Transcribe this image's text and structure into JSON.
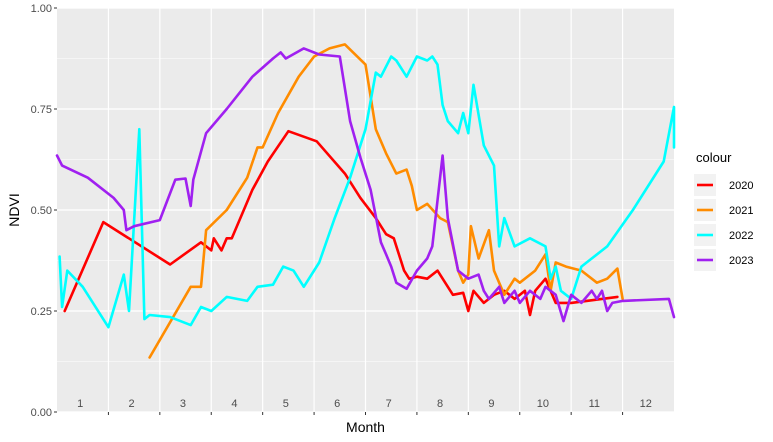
{
  "chart_data": {
    "type": "line",
    "title": "",
    "xlabel": "Month",
    "ylabel": "NDVI",
    "xlim": [
      0,
      12
    ],
    "ylim": [
      0,
      1
    ],
    "grid": true,
    "legend_title": "colour",
    "legend_position": "right",
    "x_tick_labels": [
      "1",
      "2",
      "3",
      "4",
      "5",
      "6",
      "7",
      "8",
      "9",
      "10",
      "11",
      "12"
    ],
    "y_tick_labels": [
      "0.00",
      "0.25",
      "0.50",
      "0.75",
      "1.00"
    ],
    "y_ticks": [
      0,
      0.25,
      0.5,
      0.75,
      1.0
    ],
    "series": [
      {
        "name": "2020",
        "color": "#ff0000",
        "points": [
          [
            0.15,
            0.25
          ],
          [
            0.9,
            0.47
          ],
          [
            2.2,
            0.365
          ],
          [
            2.8,
            0.42
          ],
          [
            3.0,
            0.4
          ],
          [
            3.05,
            0.43
          ],
          [
            3.2,
            0.4
          ],
          [
            3.3,
            0.43
          ],
          [
            3.4,
            0.43
          ],
          [
            3.8,
            0.55
          ],
          [
            4.1,
            0.62
          ],
          [
            4.5,
            0.695
          ],
          [
            5.05,
            0.67
          ],
          [
            5.6,
            0.59
          ],
          [
            5.9,
            0.53
          ],
          [
            6.2,
            0.48
          ],
          [
            6.4,
            0.44
          ],
          [
            6.55,
            0.43
          ],
          [
            6.75,
            0.35
          ],
          [
            6.85,
            0.33
          ],
          [
            7.0,
            0.335
          ],
          [
            7.2,
            0.33
          ],
          [
            7.4,
            0.35
          ],
          [
            7.7,
            0.29
          ],
          [
            7.9,
            0.295
          ],
          [
            8.0,
            0.25
          ],
          [
            8.1,
            0.3
          ],
          [
            8.3,
            0.27
          ],
          [
            8.5,
            0.29
          ],
          [
            8.7,
            0.3
          ],
          [
            8.9,
            0.28
          ],
          [
            9.1,
            0.3
          ],
          [
            9.2,
            0.24
          ],
          [
            9.3,
            0.3
          ],
          [
            9.5,
            0.33
          ],
          [
            9.7,
            0.27
          ],
          [
            10.0,
            0.27
          ],
          [
            10.9,
            0.285
          ]
        ]
      },
      {
        "name": "2021",
        "color": "#ff8c00",
        "points": [
          [
            1.8,
            0.135
          ],
          [
            2.6,
            0.31
          ],
          [
            2.8,
            0.31
          ],
          [
            2.9,
            0.45
          ],
          [
            3.3,
            0.5
          ],
          [
            3.7,
            0.58
          ],
          [
            3.9,
            0.655
          ],
          [
            4.0,
            0.655
          ],
          [
            4.3,
            0.74
          ],
          [
            4.7,
            0.83
          ],
          [
            5.0,
            0.88
          ],
          [
            5.3,
            0.9
          ],
          [
            5.6,
            0.91
          ],
          [
            6.0,
            0.86
          ],
          [
            6.2,
            0.7
          ],
          [
            6.4,
            0.64
          ],
          [
            6.6,
            0.59
          ],
          [
            6.8,
            0.6
          ],
          [
            6.9,
            0.56
          ],
          [
            7.0,
            0.5
          ],
          [
            7.2,
            0.515
          ],
          [
            7.45,
            0.48
          ],
          [
            7.6,
            0.47
          ],
          [
            7.8,
            0.35
          ],
          [
            7.9,
            0.32
          ],
          [
            8.0,
            0.34
          ],
          [
            8.05,
            0.46
          ],
          [
            8.2,
            0.38
          ],
          [
            8.4,
            0.45
          ],
          [
            8.5,
            0.35
          ],
          [
            8.7,
            0.29
          ],
          [
            8.9,
            0.33
          ],
          [
            9.0,
            0.32
          ],
          [
            9.3,
            0.35
          ],
          [
            9.5,
            0.39
          ],
          [
            9.6,
            0.3
          ],
          [
            9.7,
            0.37
          ],
          [
            9.9,
            0.36
          ],
          [
            10.2,
            0.35
          ],
          [
            10.5,
            0.32
          ],
          [
            10.7,
            0.33
          ],
          [
            10.9,
            0.355
          ],
          [
            11.0,
            0.28
          ]
        ]
      },
      {
        "name": "2022",
        "color": "#00ffff",
        "points": [
          [
            0.05,
            0.385
          ],
          [
            0.1,
            0.26
          ],
          [
            0.2,
            0.35
          ],
          [
            0.5,
            0.31
          ],
          [
            1.0,
            0.21
          ],
          [
            1.3,
            0.34
          ],
          [
            1.4,
            0.25
          ],
          [
            1.6,
            0.7
          ],
          [
            1.7,
            0.23
          ],
          [
            1.8,
            0.24
          ],
          [
            2.2,
            0.235
          ],
          [
            2.6,
            0.215
          ],
          [
            2.8,
            0.26
          ],
          [
            3.0,
            0.25
          ],
          [
            3.3,
            0.285
          ],
          [
            3.7,
            0.275
          ],
          [
            3.9,
            0.31
          ],
          [
            4.2,
            0.315
          ],
          [
            4.4,
            0.36
          ],
          [
            4.6,
            0.35
          ],
          [
            4.8,
            0.31
          ],
          [
            5.1,
            0.37
          ],
          [
            5.4,
            0.48
          ],
          [
            5.7,
            0.58
          ],
          [
            6.0,
            0.7
          ],
          [
            6.2,
            0.84
          ],
          [
            6.3,
            0.83
          ],
          [
            6.5,
            0.88
          ],
          [
            6.6,
            0.87
          ],
          [
            6.8,
            0.83
          ],
          [
            7.0,
            0.88
          ],
          [
            7.2,
            0.87
          ],
          [
            7.3,
            0.88
          ],
          [
            7.4,
            0.86
          ],
          [
            7.5,
            0.76
          ],
          [
            7.6,
            0.72
          ],
          [
            7.8,
            0.69
          ],
          [
            7.9,
            0.74
          ],
          [
            8.0,
            0.69
          ],
          [
            8.1,
            0.81
          ],
          [
            8.3,
            0.66
          ],
          [
            8.5,
            0.61
          ],
          [
            8.6,
            0.41
          ],
          [
            8.7,
            0.48
          ],
          [
            8.9,
            0.41
          ],
          [
            9.2,
            0.43
          ],
          [
            9.5,
            0.41
          ],
          [
            9.6,
            0.33
          ],
          [
            9.7,
            0.36
          ],
          [
            9.8,
            0.3
          ],
          [
            10.0,
            0.28
          ],
          [
            10.2,
            0.36
          ],
          [
            10.3,
            0.37
          ],
          [
            10.7,
            0.41
          ],
          [
            11.2,
            0.5
          ],
          [
            11.8,
            0.62
          ],
          [
            12.0,
            0.755
          ],
          [
            12.0,
            0.655
          ]
        ]
      },
      {
        "name": "2023",
        "color": "#a020f0",
        "points": [
          [
            0.0,
            0.635
          ],
          [
            0.1,
            0.61
          ],
          [
            0.6,
            0.58
          ],
          [
            1.1,
            0.53
          ],
          [
            1.3,
            0.5
          ],
          [
            1.35,
            0.45
          ],
          [
            1.5,
            0.46
          ],
          [
            2.0,
            0.475
          ],
          [
            2.3,
            0.575
          ],
          [
            2.5,
            0.578
          ],
          [
            2.6,
            0.51
          ],
          [
            2.65,
            0.575
          ],
          [
            2.9,
            0.69
          ],
          [
            3.3,
            0.75
          ],
          [
            3.8,
            0.83
          ],
          [
            4.2,
            0.875
          ],
          [
            4.35,
            0.89
          ],
          [
            4.45,
            0.875
          ],
          [
            4.8,
            0.9
          ],
          [
            5.1,
            0.885
          ],
          [
            5.5,
            0.88
          ],
          [
            5.7,
            0.72
          ],
          [
            5.9,
            0.63
          ],
          [
            6.1,
            0.55
          ],
          [
            6.3,
            0.42
          ],
          [
            6.4,
            0.39
          ],
          [
            6.5,
            0.36
          ],
          [
            6.6,
            0.32
          ],
          [
            6.8,
            0.305
          ],
          [
            7.0,
            0.35
          ],
          [
            7.2,
            0.38
          ],
          [
            7.3,
            0.41
          ],
          [
            7.5,
            0.635
          ],
          [
            7.6,
            0.48
          ],
          [
            7.8,
            0.35
          ],
          [
            8.0,
            0.33
          ],
          [
            8.2,
            0.34
          ],
          [
            8.3,
            0.3
          ],
          [
            8.4,
            0.28
          ],
          [
            8.6,
            0.31
          ],
          [
            8.7,
            0.27
          ],
          [
            8.9,
            0.3
          ],
          [
            9.0,
            0.27
          ],
          [
            9.2,
            0.3
          ],
          [
            9.4,
            0.28
          ],
          [
            9.5,
            0.31
          ],
          [
            9.7,
            0.29
          ],
          [
            9.85,
            0.225
          ],
          [
            10.0,
            0.29
          ],
          [
            10.2,
            0.27
          ],
          [
            10.4,
            0.3
          ],
          [
            10.5,
            0.28
          ],
          [
            10.6,
            0.3
          ],
          [
            10.7,
            0.25
          ],
          [
            10.8,
            0.27
          ],
          [
            11.0,
            0.275
          ],
          [
            11.9,
            0.28
          ],
          [
            12.0,
            0.235
          ]
        ]
      }
    ]
  }
}
